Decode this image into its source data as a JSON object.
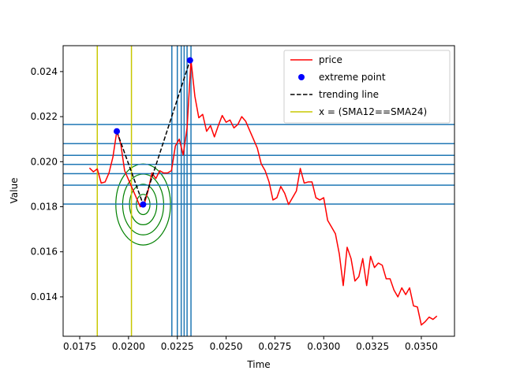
{
  "chart_data": {
    "type": "line",
    "title": "",
    "xlabel": "Time",
    "ylabel": "Value",
    "xlim": [
      0.01665,
      0.0367
    ],
    "ylim": [
      0.01225,
      0.02515
    ],
    "x_ticks": [
      0.0175,
      0.02,
      0.0225,
      0.025,
      0.0275,
      0.03,
      0.0325,
      0.035
    ],
    "x_tick_labels": [
      "0.0175",
      "0.0200",
      "0.0225",
      "0.0250",
      "0.0275",
      "0.0300",
      "0.0325",
      "0.0350"
    ],
    "y_ticks": [
      0.014,
      0.016,
      0.018,
      0.02,
      0.022,
      0.024
    ],
    "y_tick_labels": [
      "0.014",
      "0.016",
      "0.018",
      "0.020",
      "0.022",
      "0.024"
    ],
    "grid": false,
    "legend_position": "top-right",
    "series": [
      {
        "name": "price",
        "kind": "line",
        "color": "#ff0000",
        "x": [
          0.018,
          0.0182,
          0.0184,
          0.0186,
          0.0188,
          0.019,
          0.0192,
          0.0194,
          0.0196,
          0.0198,
          0.02,
          0.0202,
          0.0204,
          0.0206,
          0.0208,
          0.021,
          0.0212,
          0.0214,
          0.0216,
          0.0218,
          0.022,
          0.0222,
          0.0224,
          0.0226,
          0.0228,
          0.023,
          0.0232,
          0.0234,
          0.0236,
          0.0238,
          0.024,
          0.0242,
          0.0244,
          0.0246,
          0.0248,
          0.025,
          0.0252,
          0.0254,
          0.0256,
          0.0258,
          0.026,
          0.0262,
          0.0264,
          0.0266,
          0.0268,
          0.027,
          0.0272,
          0.0274,
          0.0276,
          0.0278,
          0.028,
          0.0282,
          0.0284,
          0.0286,
          0.0288,
          0.029,
          0.0292,
          0.0294,
          0.0296,
          0.0298,
          0.03,
          0.0302,
          0.0304,
          0.0306,
          0.0308,
          0.031,
          0.0312,
          0.0314,
          0.0316,
          0.0318,
          0.032,
          0.0322,
          0.0324,
          0.0326,
          0.0328,
          0.033,
          0.0332,
          0.0334,
          0.0336,
          0.0338,
          0.034,
          0.0342,
          0.0344,
          0.0346,
          0.0348,
          0.035,
          0.0352,
          0.0354,
          0.0356,
          0.0358
        ],
        "y": [
          0.01972,
          0.01955,
          0.01968,
          0.01905,
          0.0191,
          0.0195,
          0.0202,
          0.02135,
          0.0208,
          0.0196,
          0.0192,
          0.0188,
          0.0184,
          0.018,
          0.0181,
          0.0187,
          0.0195,
          0.01925,
          0.0196,
          0.0195,
          0.0195,
          0.0196,
          0.0207,
          0.021,
          0.0203,
          0.0215,
          0.0245,
          0.0229,
          0.02195,
          0.0221,
          0.02135,
          0.0216,
          0.0211,
          0.0216,
          0.02205,
          0.02175,
          0.02185,
          0.0215,
          0.02165,
          0.022,
          0.0218,
          0.0214,
          0.021,
          0.0206,
          0.0199,
          0.0196,
          0.0191,
          0.0183,
          0.0184,
          0.0189,
          0.0186,
          0.0181,
          0.0184,
          0.0187,
          0.0197,
          0.01905,
          0.0191,
          0.0191,
          0.0184,
          0.0183,
          0.0184,
          0.0174,
          0.0171,
          0.0168,
          0.0159,
          0.0145,
          0.0162,
          0.0157,
          0.0147,
          0.0149,
          0.0157,
          0.0145,
          0.0158,
          0.0153,
          0.0155,
          0.0154,
          0.0148,
          0.0148,
          0.0143,
          0.014,
          0.0144,
          0.0141,
          0.0144,
          0.0136,
          0.01355,
          0.01275,
          0.0129,
          0.0131,
          0.013,
          0.01315
        ]
      },
      {
        "name": "extreme point",
        "kind": "scatter",
        "color": "#0000ff",
        "x": [
          0.0194,
          0.02075,
          0.02315
        ],
        "y": [
          0.02135,
          0.0181,
          0.0245
        ]
      },
      {
        "name": "trending line",
        "kind": "dashed",
        "color": "#000000",
        "x": [
          0.0194,
          0.02075,
          0.02315
        ],
        "y": [
          0.02135,
          0.0181,
          0.0245
        ]
      },
      {
        "name": "x = (SMA12==SMA24)",
        "kind": "vline",
        "color": "#c8c800",
        "x": [
          0.0184,
          0.02015
        ]
      }
    ],
    "horizontal_lines": {
      "color": "#1f77b4",
      "y": [
        0.02165,
        0.0208,
        0.02028,
        0.01988,
        0.01947,
        0.01896,
        0.01812
      ]
    },
    "vertical_lines": {
      "color": "#1f77b4",
      "x": [
        0.02222,
        0.0225,
        0.0227,
        0.02285,
        0.023,
        0.0232
      ]
    },
    "circles": {
      "color": "#008000",
      "center": [
        0.02075,
        0.0181
      ],
      "radius_x": [
        0.00035,
        0.0007,
        0.00105,
        0.0014
      ],
      "radius_y": [
        0.00045,
        0.0009,
        0.00135,
        0.0018
      ]
    }
  }
}
